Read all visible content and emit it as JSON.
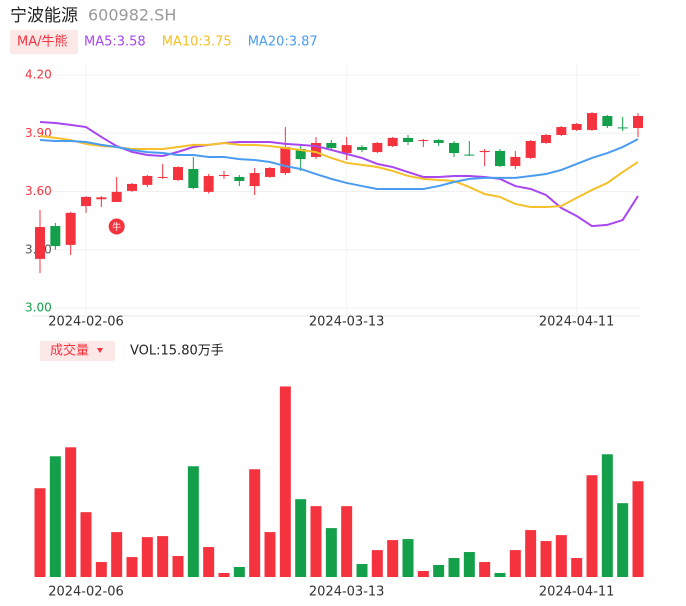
{
  "header": {
    "title": "宁波能源",
    "code": "600982.SH",
    "indicator": "MA/牛熊",
    "volume_tab": "成交量",
    "volume_label": "VOL:15.80万手"
  },
  "chart_data": {
    "type": "candlestick",
    "categories": [
      null,
      null,
      null,
      "2024-02-06",
      null,
      null,
      null,
      null,
      null,
      null,
      null,
      null,
      null,
      null,
      null,
      null,
      null,
      null,
      null,
      null,
      "2024-03-13",
      null,
      null,
      null,
      null,
      null,
      null,
      null,
      null,
      null,
      null,
      null,
      null,
      null,
      null,
      "2024-04-11",
      null,
      null,
      null,
      null
    ],
    "open": [
      3.253,
      3.422,
      3.325,
      3.525,
      3.56,
      3.546,
      3.603,
      3.634,
      3.67,
      3.659,
      3.716,
      3.598,
      3.68,
      3.675,
      3.628,
      3.675,
      3.695,
      3.819,
      3.778,
      3.85,
      3.798,
      3.829,
      3.803,
      3.834,
      3.876,
      3.862,
      3.865,
      3.85,
      3.79,
      3.803,
      3.809,
      3.731,
      3.773,
      3.85,
      3.891,
      3.917,
      3.917,
      3.989,
      3.93,
      3.927
    ],
    "high": [
      3.505,
      3.438,
      3.495,
      3.577,
      3.577,
      3.675,
      3.644,
      3.685,
      3.742,
      3.73,
      3.778,
      3.69,
      3.706,
      3.685,
      3.721,
      3.726,
      3.932,
      3.834,
      3.881,
      3.865,
      3.881,
      3.839,
      3.855,
      3.881,
      3.891,
      3.87,
      3.87,
      3.86,
      3.86,
      3.819,
      3.819,
      3.809,
      3.865,
      3.896,
      3.937,
      3.953,
      4.009,
      3.994,
      3.984,
      4.004
    ],
    "low": [
      3.18,
      3.3,
      3.273,
      3.49,
      3.52,
      3.546,
      3.598,
      3.623,
      3.665,
      3.655,
      3.613,
      3.59,
      3.665,
      3.628,
      3.582,
      3.67,
      3.685,
      3.706,
      3.767,
      3.814,
      3.762,
      3.803,
      3.798,
      3.829,
      3.839,
      3.829,
      3.834,
      3.778,
      3.783,
      3.731,
      3.726,
      3.716,
      3.768,
      3.845,
      3.886,
      3.912,
      3.912,
      3.927,
      3.912,
      3.881
    ],
    "close": [
      3.417,
      3.319,
      3.49,
      3.572,
      3.57,
      3.598,
      3.639,
      3.68,
      3.675,
      3.726,
      3.618,
      3.68,
      3.685,
      3.654,
      3.695,
      3.721,
      3.829,
      3.767,
      3.85,
      3.824,
      3.839,
      3.814,
      3.85,
      3.876,
      3.855,
      3.865,
      3.85,
      3.798,
      3.788,
      3.809,
      3.731,
      3.778,
      3.86,
      3.891,
      3.932,
      3.948,
      4.004,
      3.937,
      3.927,
      3.989
    ],
    "up_color": "#f5333f",
    "down_color": "#14a04a",
    "series": [
      {
        "label": "MA5:3.58",
        "color": "#a846f0",
        "values": [
          3.958,
          3.953,
          3.943,
          3.932,
          3.881,
          3.834,
          3.804,
          3.788,
          3.783,
          3.804,
          3.829,
          3.84,
          3.85,
          3.855,
          3.855,
          3.855,
          3.845,
          3.84,
          3.834,
          3.814,
          3.793,
          3.773,
          3.742,
          3.726,
          3.7,
          3.675,
          3.675,
          3.68,
          3.68,
          3.675,
          3.665,
          3.628,
          3.613,
          3.582,
          3.515,
          3.474,
          3.422,
          3.428,
          3.453,
          3.577
        ]
      },
      {
        "label": "MA10:3.75",
        "color": "#f5c02a",
        "values": [
          3.886,
          3.876,
          3.865,
          3.845,
          3.834,
          3.829,
          3.819,
          3.819,
          3.819,
          3.829,
          3.84,
          3.84,
          3.85,
          3.84,
          3.84,
          3.834,
          3.824,
          3.814,
          3.803,
          3.773,
          3.747,
          3.737,
          3.726,
          3.706,
          3.68,
          3.665,
          3.659,
          3.654,
          3.623,
          3.587,
          3.572,
          3.536,
          3.52,
          3.52,
          3.525,
          3.567,
          3.608,
          3.644,
          3.7,
          3.752
        ]
      },
      {
        "label": "MA20:3.87",
        "color": "#4a9cf0",
        "values": [
          3.865,
          3.86,
          3.86,
          3.855,
          3.84,
          3.829,
          3.814,
          3.803,
          3.798,
          3.788,
          3.788,
          3.778,
          3.778,
          3.767,
          3.762,
          3.752,
          3.731,
          3.716,
          3.69,
          3.665,
          3.644,
          3.628,
          3.613,
          3.613,
          3.613,
          3.613,
          3.628,
          3.649,
          3.665,
          3.67,
          3.67,
          3.67,
          3.68,
          3.69,
          3.711,
          3.742,
          3.773,
          3.798,
          3.829,
          3.87
        ]
      }
    ],
    "ylim": [
      3.0,
      4.2
    ],
    "yticks": [
      {
        "value": 4.2,
        "label": "4.20"
      },
      {
        "value": 3.9,
        "label": "3.90"
      },
      {
        "value": 3.6,
        "label": "3.60"
      },
      {
        "value": 3.3,
        "label": "3.30"
      },
      {
        "value": 3.0,
        "label": "3.00"
      }
    ],
    "ytick_colors": [
      "#f5333f",
      "#f5333f",
      "#f5333f",
      "#555555",
      "#14a04a"
    ],
    "grid": true,
    "annotations": [
      {
        "text": "牛",
        "index": 5,
        "value": 3.42
      }
    ],
    "volume": [
      14.65,
      19.92,
      21.4,
      10.7,
      2.47,
      7.41,
      3.29,
      6.58,
      6.75,
      3.46,
      18.27,
      4.94,
      0.66,
      1.65,
      17.78,
      7.41,
      31.44,
      12.84,
      11.69,
      8.07,
      11.69,
      2.14,
      4.44,
      6.09,
      6.26,
      0.99,
      1.98,
      3.13,
      4.12,
      2.47,
      0.66,
      4.44,
      7.74,
      5.93,
      6.91,
      3.13,
      16.79,
      20.25,
      12.18,
      15.8
    ],
    "volume_ylim": [
      0,
      33
    ]
  }
}
